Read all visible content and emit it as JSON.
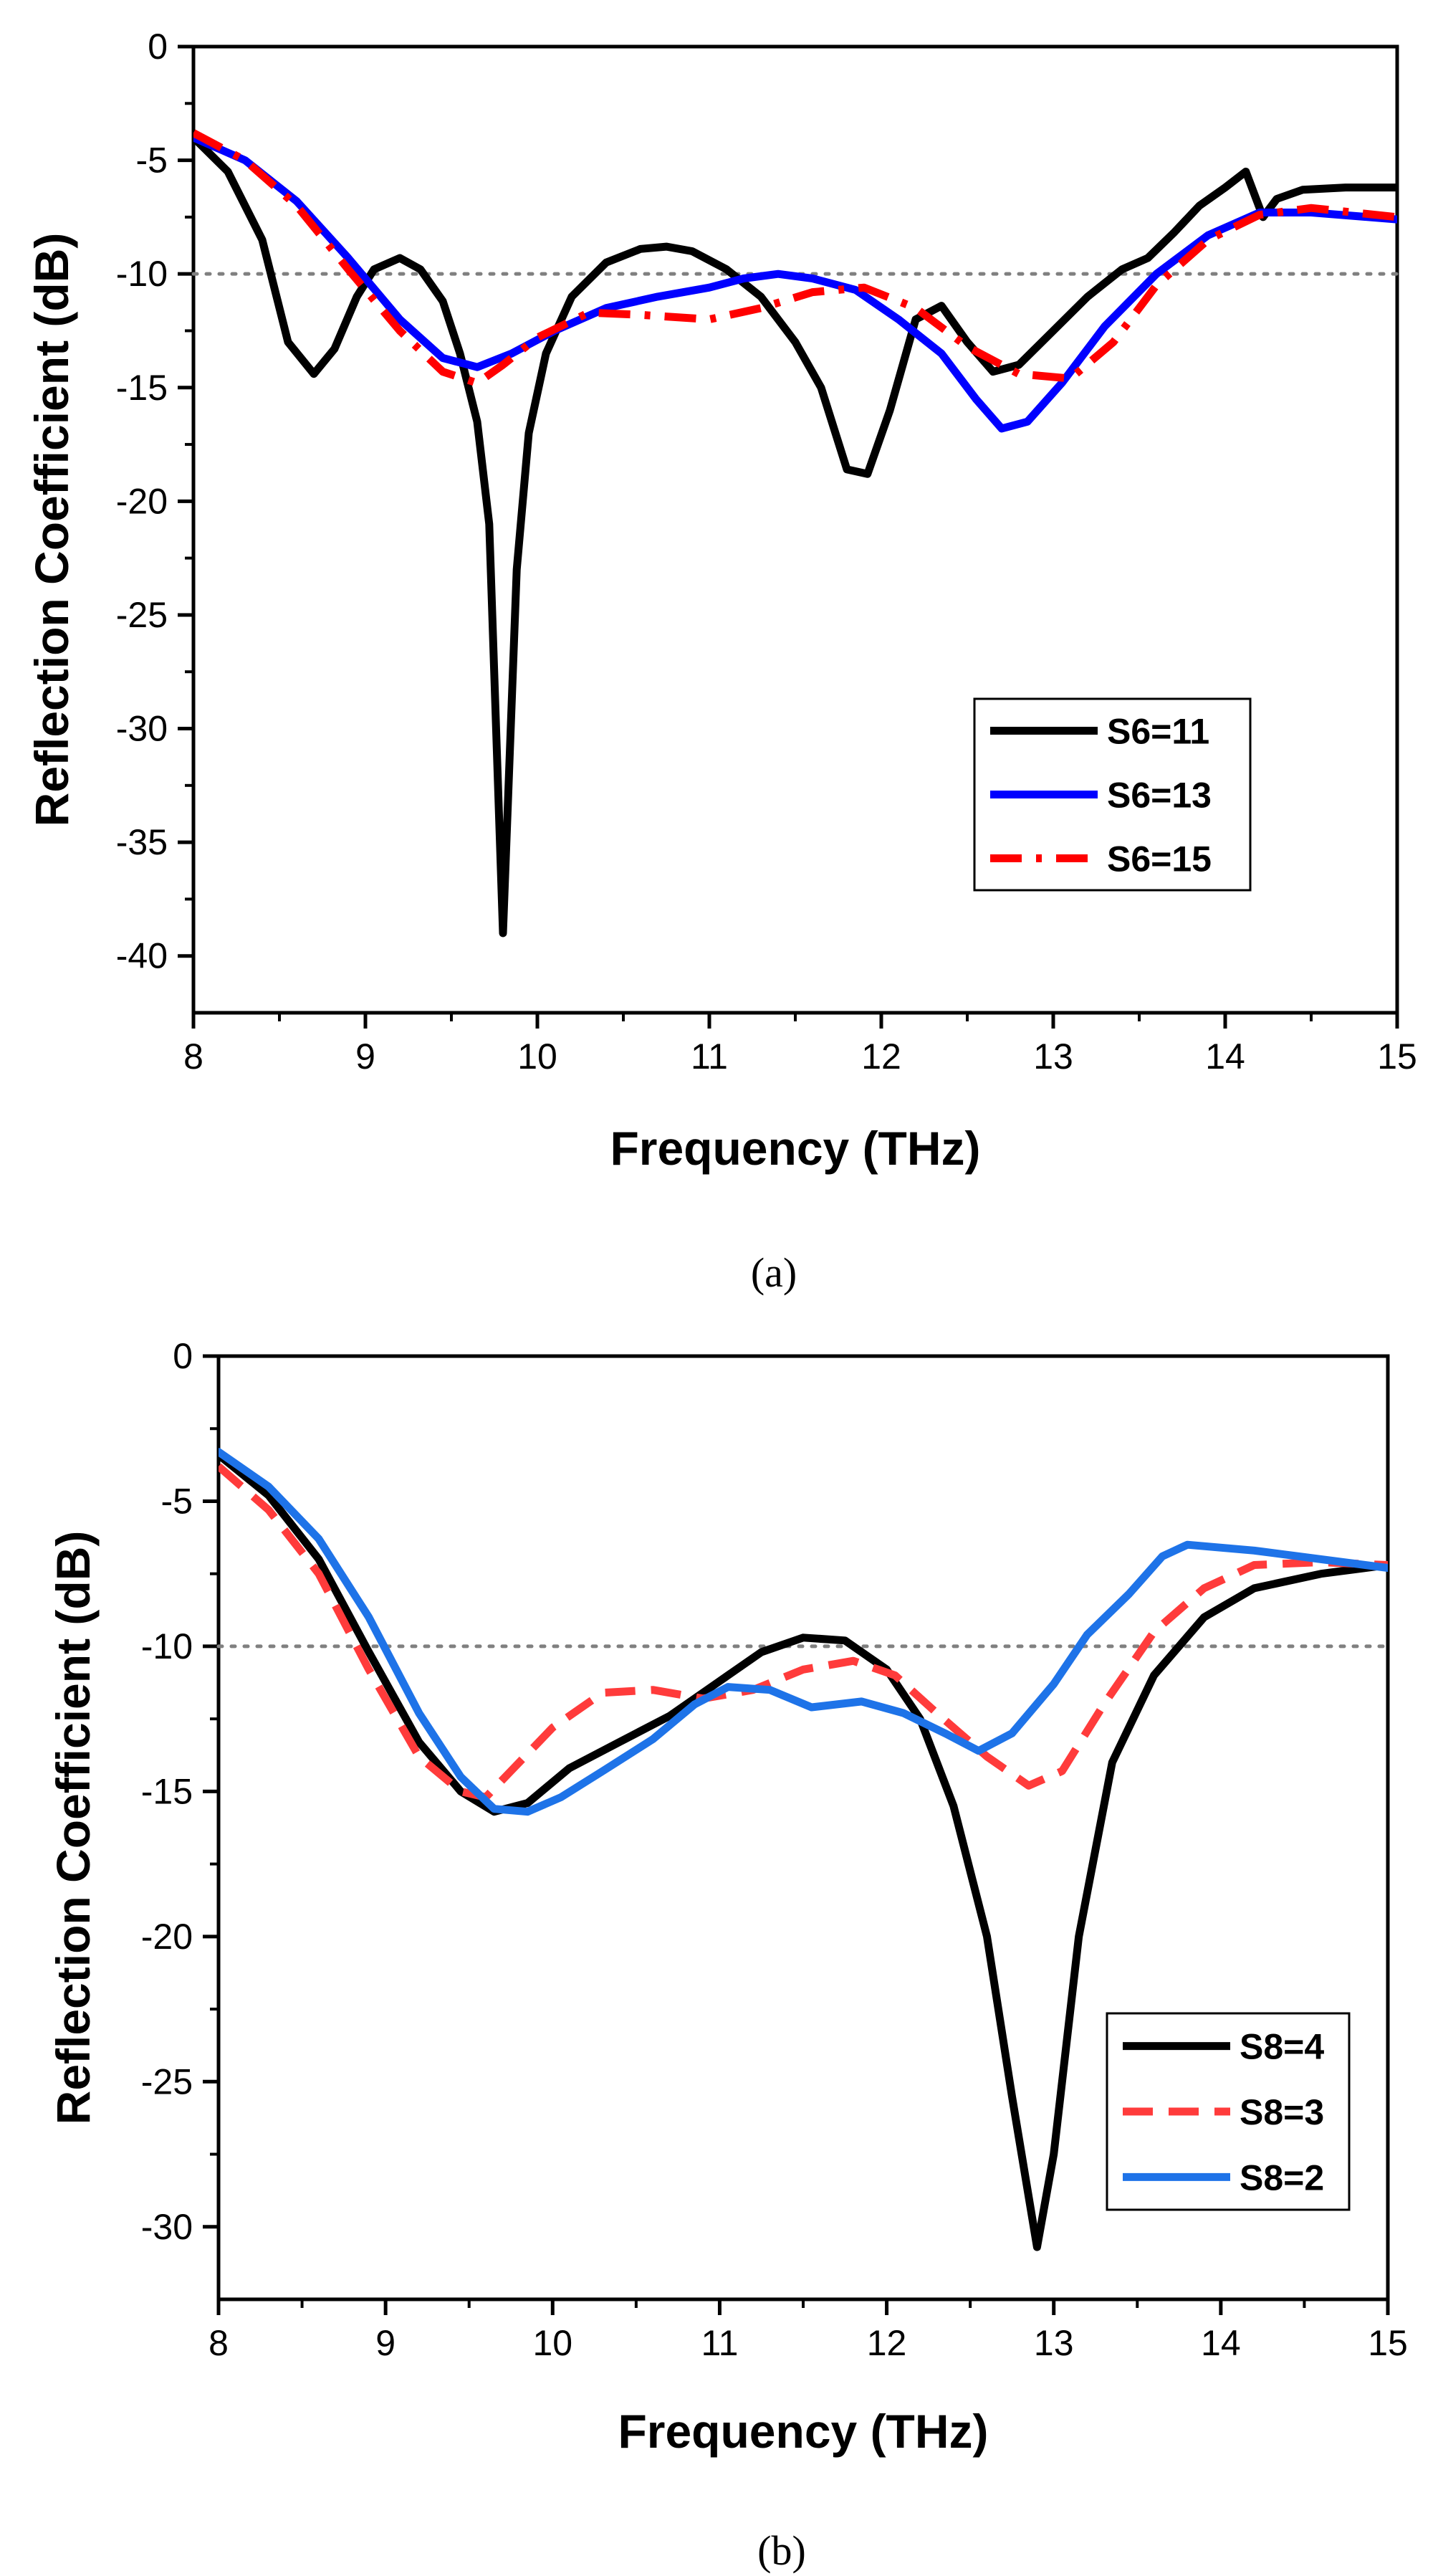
{
  "chart_data": [
    {
      "type": "line",
      "panel_label": "(a)",
      "xlabel": "Frequency (THz)",
      "ylabel": "Reflection Coefficient (dB)",
      "xlim": [
        8,
        15
      ],
      "ylim": [
        -42.5,
        0
      ],
      "x_ticks": [
        "8",
        "9",
        "10",
        "11",
        "12",
        "13",
        "14",
        "15"
      ],
      "y_ticks": [
        "0",
        "-5",
        "-10",
        "-15",
        "-20",
        "-25",
        "-30",
        "-35",
        "-40"
      ],
      "reference_line_y": -10,
      "legend_position": "lower-right",
      "series": [
        {
          "name": "S6=11",
          "color": "#000000",
          "style": "solid",
          "points": [
            [
              8.0,
              -4.0
            ],
            [
              8.2,
              -5.5
            ],
            [
              8.4,
              -8.5
            ],
            [
              8.55,
              -13.0
            ],
            [
              8.7,
              -14.4
            ],
            [
              8.82,
              -13.3
            ],
            [
              8.95,
              -11.0
            ],
            [
              9.05,
              -9.8
            ],
            [
              9.2,
              -9.3
            ],
            [
              9.32,
              -9.8
            ],
            [
              9.45,
              -11.2
            ],
            [
              9.55,
              -13.5
            ],
            [
              9.65,
              -16.5
            ],
            [
              9.72,
              -21.0
            ],
            [
              9.8,
              -39.0
            ],
            [
              9.88,
              -23.0
            ],
            [
              9.95,
              -17.0
            ],
            [
              10.05,
              -13.5
            ],
            [
              10.2,
              -11.0
            ],
            [
              10.4,
              -9.5
            ],
            [
              10.6,
              -8.9
            ],
            [
              10.75,
              -8.8
            ],
            [
              10.9,
              -9.0
            ],
            [
              11.1,
              -9.8
            ],
            [
              11.3,
              -11.0
            ],
            [
              11.5,
              -13.0
            ],
            [
              11.65,
              -15.0
            ],
            [
              11.8,
              -18.6
            ],
            [
              11.92,
              -18.8
            ],
            [
              12.05,
              -16.0
            ],
            [
              12.2,
              -12.0
            ],
            [
              12.35,
              -11.4
            ],
            [
              12.5,
              -13.0
            ],
            [
              12.65,
              -14.3
            ],
            [
              12.8,
              -14.0
            ],
            [
              13.0,
              -12.5
            ],
            [
              13.2,
              -11.0
            ],
            [
              13.4,
              -9.8
            ],
            [
              13.55,
              -9.3
            ],
            [
              13.7,
              -8.2
            ],
            [
              13.85,
              -7.0
            ],
            [
              14.0,
              -6.2
            ],
            [
              14.12,
              -5.5
            ],
            [
              14.22,
              -7.5
            ],
            [
              14.3,
              -6.7
            ],
            [
              14.45,
              -6.3
            ],
            [
              14.7,
              -6.2
            ],
            [
              15.0,
              -6.2
            ]
          ]
        },
        {
          "name": "S6=13",
          "color": "#0000ff",
          "style": "solid",
          "points": [
            [
              8.0,
              -4.0
            ],
            [
              8.3,
              -5.0
            ],
            [
              8.6,
              -6.8
            ],
            [
              8.9,
              -9.3
            ],
            [
              9.2,
              -12.0
            ],
            [
              9.45,
              -13.7
            ],
            [
              9.65,
              -14.1
            ],
            [
              9.85,
              -13.5
            ],
            [
              10.1,
              -12.5
            ],
            [
              10.4,
              -11.5
            ],
            [
              10.7,
              -11.0
            ],
            [
              11.0,
              -10.6
            ],
            [
              11.2,
              -10.2
            ],
            [
              11.4,
              -10.0
            ],
            [
              11.6,
              -10.2
            ],
            [
              11.85,
              -10.7
            ],
            [
              12.1,
              -12.0
            ],
            [
              12.35,
              -13.5
            ],
            [
              12.55,
              -15.5
            ],
            [
              12.7,
              -16.8
            ],
            [
              12.85,
              -16.5
            ],
            [
              13.05,
              -14.8
            ],
            [
              13.3,
              -12.3
            ],
            [
              13.6,
              -10.0
            ],
            [
              13.9,
              -8.3
            ],
            [
              14.2,
              -7.3
            ],
            [
              14.5,
              -7.3
            ],
            [
              15.0,
              -7.6
            ]
          ]
        },
        {
          "name": "S6=15",
          "color": "#ff0000",
          "style": "dashdot",
          "points": [
            [
              8.0,
              -3.8
            ],
            [
              8.3,
              -5.0
            ],
            [
              8.6,
              -7.0
            ],
            [
              8.9,
              -9.8
            ],
            [
              9.2,
              -12.5
            ],
            [
              9.45,
              -14.3
            ],
            [
              9.65,
              -14.8
            ],
            [
              9.8,
              -14.0
            ],
            [
              10.0,
              -12.8
            ],
            [
              10.3,
              -11.7
            ],
            [
              10.6,
              -11.8
            ],
            [
              11.0,
              -12.0
            ],
            [
              11.3,
              -11.5
            ],
            [
              11.6,
              -10.8
            ],
            [
              11.9,
              -10.6
            ],
            [
              12.2,
              -11.5
            ],
            [
              12.5,
              -13.2
            ],
            [
              12.8,
              -14.4
            ],
            [
              13.1,
              -14.6
            ],
            [
              13.35,
              -13.0
            ],
            [
              13.6,
              -10.5
            ],
            [
              13.9,
              -8.5
            ],
            [
              14.2,
              -7.4
            ],
            [
              14.5,
              -7.1
            ],
            [
              15.0,
              -7.5
            ]
          ]
        }
      ]
    },
    {
      "type": "line",
      "panel_label": "(b)",
      "xlabel": "Frequency (THz)",
      "ylabel": "Reflection Coefficient (dB)",
      "xlim": [
        8,
        15
      ],
      "ylim": [
        -32.5,
        0
      ],
      "x_ticks": [
        "8",
        "9",
        "10",
        "11",
        "12",
        "13",
        "14",
        "15"
      ],
      "y_ticks": [
        "0",
        "-5",
        "-10",
        "-15",
        "-20",
        "-25",
        "-30"
      ],
      "reference_line_y": -10,
      "legend_position": "lower-right",
      "series": [
        {
          "name": "S8=4",
          "color": "#000000",
          "style": "solid",
          "points": [
            [
              8.0,
              -3.4
            ],
            [
              8.3,
              -4.8
            ],
            [
              8.6,
              -7.0
            ],
            [
              8.9,
              -10.2
            ],
            [
              9.2,
              -13.3
            ],
            [
              9.45,
              -15.0
            ],
            [
              9.65,
              -15.7
            ],
            [
              9.85,
              -15.4
            ],
            [
              10.1,
              -14.2
            ],
            [
              10.4,
              -13.3
            ],
            [
              10.7,
              -12.4
            ],
            [
              11.0,
              -11.2
            ],
            [
              11.25,
              -10.2
            ],
            [
              11.5,
              -9.7
            ],
            [
              11.75,
              -9.8
            ],
            [
              12.0,
              -10.8
            ],
            [
              12.2,
              -12.5
            ],
            [
              12.4,
              -15.5
            ],
            [
              12.6,
              -20.0
            ],
            [
              12.75,
              -25.5
            ],
            [
              12.9,
              -30.7
            ],
            [
              13.0,
              -27.5
            ],
            [
              13.15,
              -20.0
            ],
            [
              13.35,
              -14.0
            ],
            [
              13.6,
              -11.0
            ],
            [
              13.9,
              -9.0
            ],
            [
              14.2,
              -8.0
            ],
            [
              14.6,
              -7.5
            ],
            [
              15.0,
              -7.2
            ]
          ]
        },
        {
          "name": "S8=3",
          "color": "#ff3b3b",
          "style": "dashed",
          "points": [
            [
              8.0,
              -3.8
            ],
            [
              8.3,
              -5.3
            ],
            [
              8.6,
              -7.5
            ],
            [
              8.9,
              -10.8
            ],
            [
              9.2,
              -13.8
            ],
            [
              9.45,
              -15.0
            ],
            [
              9.6,
              -15.2
            ],
            [
              9.75,
              -14.3
            ],
            [
              10.0,
              -12.8
            ],
            [
              10.3,
              -11.6
            ],
            [
              10.6,
              -11.5
            ],
            [
              10.9,
              -11.8
            ],
            [
              11.2,
              -11.5
            ],
            [
              11.5,
              -10.8
            ],
            [
              11.8,
              -10.5
            ],
            [
              12.05,
              -11.0
            ],
            [
              12.3,
              -12.3
            ],
            [
              12.6,
              -13.8
            ],
            [
              12.85,
              -14.8
            ],
            [
              13.05,
              -14.3
            ],
            [
              13.3,
              -12.0
            ],
            [
              13.6,
              -9.5
            ],
            [
              13.9,
              -8.0
            ],
            [
              14.2,
              -7.2
            ],
            [
              14.6,
              -7.1
            ],
            [
              15.0,
              -7.2
            ]
          ]
        },
        {
          "name": "S8=2",
          "color": "#1e73e8",
          "style": "solid",
          "points": [
            [
              8.0,
              -3.3
            ],
            [
              8.3,
              -4.5
            ],
            [
              8.6,
              -6.3
            ],
            [
              8.9,
              -9.0
            ],
            [
              9.2,
              -12.3
            ],
            [
              9.45,
              -14.5
            ],
            [
              9.65,
              -15.6
            ],
            [
              9.85,
              -15.7
            ],
            [
              10.05,
              -15.2
            ],
            [
              10.3,
              -14.3
            ],
            [
              10.6,
              -13.2
            ],
            [
              10.85,
              -12.0
            ],
            [
              11.05,
              -11.4
            ],
            [
              11.3,
              -11.5
            ],
            [
              11.55,
              -12.1
            ],
            [
              11.85,
              -11.9
            ],
            [
              12.1,
              -12.3
            ],
            [
              12.35,
              -13.0
            ],
            [
              12.55,
              -13.6
            ],
            [
              12.75,
              -13.0
            ],
            [
              13.0,
              -11.3
            ],
            [
              13.2,
              -9.6
            ],
            [
              13.45,
              -8.2
            ],
            [
              13.65,
              -6.9
            ],
            [
              13.8,
              -6.5
            ],
            [
              14.2,
              -6.7
            ],
            [
              14.6,
              -7.0
            ],
            [
              15.0,
              -7.3
            ]
          ]
        }
      ]
    }
  ]
}
